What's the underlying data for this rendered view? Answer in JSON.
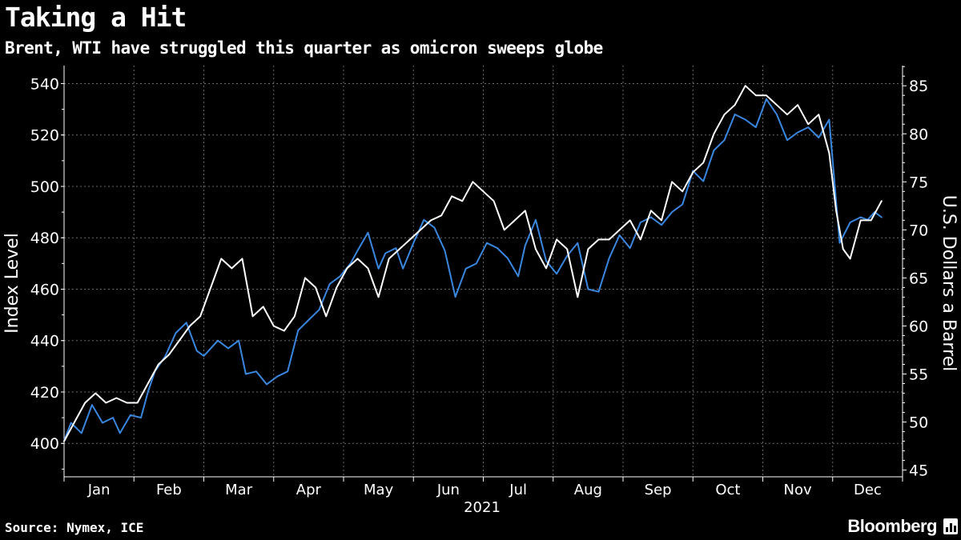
{
  "title": "Taking a Hit",
  "subtitle": "Brent, WTI have struggled this quarter as omicron sweeps globe",
  "source": "Source: Nymex, ICE",
  "brand": "Bloomberg",
  "chart_data": {
    "type": "line",
    "xlabel": "2021",
    "y_left_label": "Index Level",
    "y_right_label": "U.S. Dollars a Barrel",
    "y_left_ticks": [
      400,
      420,
      440,
      460,
      480,
      500,
      520,
      540
    ],
    "y_left_range": [
      387,
      547
    ],
    "y_right_ticks": [
      45,
      50,
      55,
      60,
      65,
      70,
      75,
      80,
      85
    ],
    "y_right_range": [
      44.3,
      87.1
    ],
    "months": [
      "Jan",
      "Feb",
      "Mar",
      "Apr",
      "May",
      "Jun",
      "Jul",
      "Aug",
      "Sep",
      "Oct",
      "Nov",
      "Dec"
    ],
    "x_range": [
      0,
      12
    ],
    "grid": true,
    "series": [
      {
        "name": "Blue series (left axis, Index Level)",
        "color": "#3a87e0",
        "axis": "left",
        "x": [
          0.0,
          0.1,
          0.25,
          0.4,
          0.55,
          0.7,
          0.8,
          0.95,
          1.1,
          1.2,
          1.3,
          1.45,
          1.6,
          1.75,
          1.9,
          2.0,
          2.1,
          2.2,
          2.35,
          2.5,
          2.6,
          2.75,
          2.9,
          3.05,
          3.2,
          3.35,
          3.5,
          3.65,
          3.8,
          3.95,
          4.1,
          4.2,
          4.35,
          4.5,
          4.6,
          4.75,
          4.85,
          5.0,
          5.15,
          5.3,
          5.45,
          5.6,
          5.75,
          5.9,
          6.05,
          6.2,
          6.35,
          6.5,
          6.6,
          6.75,
          6.9,
          7.05,
          7.2,
          7.35,
          7.5,
          7.65,
          7.8,
          7.95,
          8.1,
          8.25,
          8.4,
          8.55,
          8.7,
          8.85,
          9.0,
          9.15,
          9.3,
          9.45,
          9.6,
          9.75,
          9.9,
          10.05,
          10.2,
          10.35,
          10.5,
          10.65,
          10.8,
          10.95,
          11.1,
          11.25,
          11.4,
          11.5,
          11.6,
          11.7
        ],
        "values": [
          401,
          408,
          404,
          415,
          408,
          410,
          404,
          411,
          410,
          420,
          428,
          434,
          443,
          447,
          436,
          434,
          437,
          440,
          437,
          440,
          427,
          428,
          423,
          426,
          428,
          444,
          448,
          452,
          462,
          465,
          470,
          475,
          482,
          468,
          474,
          476,
          468,
          478,
          487,
          484,
          475,
          457,
          468,
          470,
          478,
          476,
          472,
          465,
          477,
          487,
          471,
          466,
          473,
          478,
          460,
          459,
          472,
          481,
          476,
          486,
          488,
          485,
          490,
          493,
          506,
          502,
          514,
          518,
          528,
          526,
          523,
          534,
          528,
          518,
          521,
          523,
          519,
          526,
          478,
          486,
          488,
          487,
          490,
          488
        ]
      },
      {
        "name": "White series (right axis, U.S. Dollars a Barrel)",
        "color": "#ffffff",
        "axis": "right",
        "x": [
          0.0,
          0.15,
          0.3,
          0.45,
          0.6,
          0.75,
          0.9,
          1.05,
          1.2,
          1.35,
          1.5,
          1.65,
          1.8,
          1.95,
          2.1,
          2.25,
          2.4,
          2.55,
          2.7,
          2.85,
          3.0,
          3.15,
          3.3,
          3.45,
          3.6,
          3.75,
          3.9,
          4.05,
          4.2,
          4.35,
          4.5,
          4.65,
          4.8,
          4.95,
          5.1,
          5.25,
          5.4,
          5.55,
          5.7,
          5.85,
          6.0,
          6.15,
          6.3,
          6.45,
          6.6,
          6.75,
          6.9,
          7.05,
          7.2,
          7.35,
          7.5,
          7.65,
          7.8,
          7.95,
          8.1,
          8.25,
          8.4,
          8.55,
          8.7,
          8.85,
          9.0,
          9.15,
          9.3,
          9.45,
          9.6,
          9.75,
          9.9,
          10.05,
          10.2,
          10.35,
          10.5,
          10.65,
          10.8,
          10.95,
          11.05,
          11.15,
          11.25,
          11.4,
          11.55,
          11.7
        ],
        "values": [
          48,
          50,
          52,
          53,
          52,
          52.5,
          52,
          52,
          54,
          56,
          57,
          58.5,
          60,
          61,
          64,
          67,
          66,
          67,
          61,
          62,
          60,
          59.5,
          61,
          65,
          64,
          61,
          64,
          66,
          67,
          66,
          63,
          67,
          68,
          69,
          70,
          71,
          71.5,
          73.5,
          73,
          75,
          74,
          73,
          70,
          71,
          72,
          68,
          66,
          69,
          68,
          63,
          68,
          69,
          69,
          70,
          71,
          69,
          72,
          71,
          75,
          74,
          76,
          77,
          80,
          82,
          83,
          85,
          84,
          84,
          83,
          82,
          83,
          81,
          82,
          78,
          72,
          68,
          67,
          71,
          71,
          73
        ]
      }
    ]
  }
}
